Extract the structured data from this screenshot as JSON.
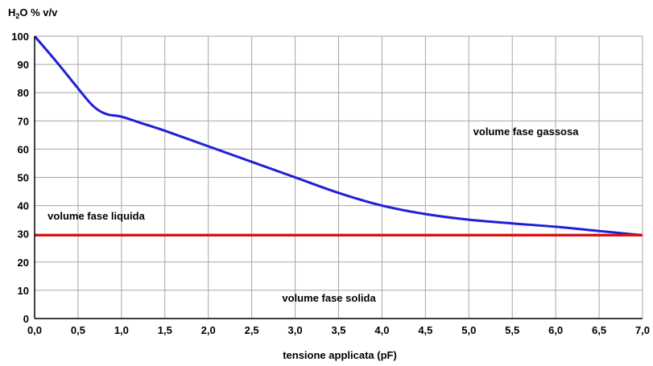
{
  "chart_data": {
    "type": "line",
    "ylabel_parts": [
      "H",
      "2",
      "O % v/v"
    ],
    "xlabel": "tensione applicata (pF)",
    "xlim": [
      0,
      7
    ],
    "ylim": [
      0,
      100
    ],
    "xticks": [
      0,
      0.5,
      1,
      1.5,
      2,
      2.5,
      3,
      3.5,
      4,
      4.5,
      5,
      5.5,
      6,
      6.5,
      7
    ],
    "xtick_labels": [
      "0,0",
      "0,5",
      "1,0",
      "1,5",
      "2,0",
      "2,5",
      "3,0",
      "3,5",
      "4,0",
      "4,5",
      "5,0",
      "5,5",
      "6,0",
      "6,5",
      "7,0"
    ],
    "yticks": [
      0,
      10,
      20,
      30,
      40,
      50,
      60,
      70,
      80,
      90,
      100
    ],
    "ytick_labels": [
      "0",
      "10",
      "20",
      "30",
      "40",
      "50",
      "60",
      "70",
      "80",
      "90",
      "100"
    ],
    "grid": true,
    "series": [
      {
        "color": "#1f1fd6",
        "x": [
          0,
          0.25,
          0.5,
          0.65,
          0.75,
          0.85,
          1.0,
          1.25,
          1.5,
          2.0,
          2.5,
          3.0,
          3.5,
          4.0,
          4.5,
          5.0,
          5.5,
          6.0,
          6.5,
          7.0
        ],
        "y": [
          100,
          91,
          81.5,
          76,
          73.5,
          72.2,
          71.5,
          69,
          66.5,
          61,
          55.5,
          50,
          44.5,
          40,
          37,
          35,
          33.7,
          32.5,
          31,
          29.5
        ]
      },
      {
        "color": "#e01010",
        "x": [
          0,
          7
        ],
        "y": [
          29.5,
          29.5
        ]
      }
    ],
    "annotations": [
      {
        "text": "volume fase gassosa",
        "x": 5.05,
        "y": 65
      },
      {
        "text": "volume fase liquida",
        "x": 0.15,
        "y": 35
      },
      {
        "text": "volume fase solida",
        "x": 2.85,
        "y": 6
      }
    ]
  }
}
